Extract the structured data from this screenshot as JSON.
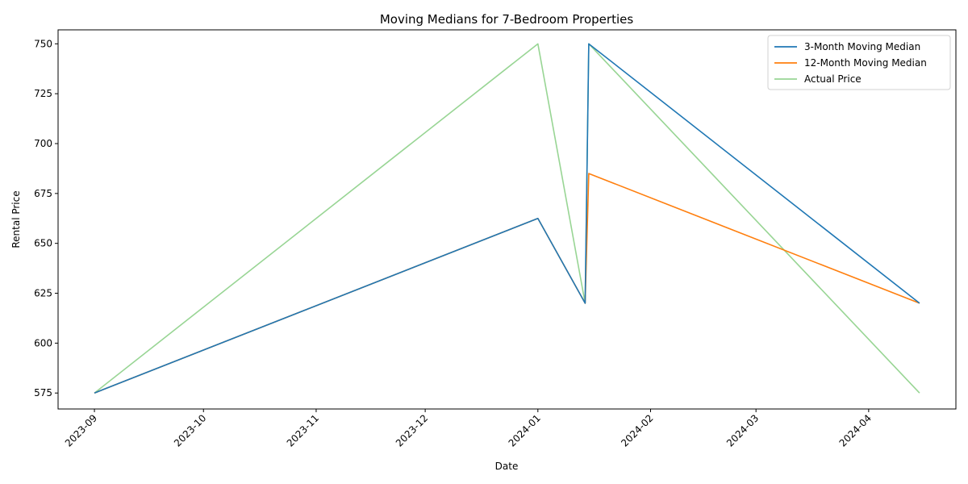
{
  "chart_data": {
    "type": "line",
    "title": "Moving Medians for 7-Bedroom Properties",
    "xlabel": "Date",
    "ylabel": "Rental Price",
    "xlim": [
      "2023-08-22",
      "2024-04-25"
    ],
    "ylim": [
      567,
      757
    ],
    "x_ticks": [
      "2023-09",
      "2023-10",
      "2023-11",
      "2023-12",
      "2024-01",
      "2024-02",
      "2024-03",
      "2024-04"
    ],
    "y_ticks": [
      575,
      600,
      625,
      650,
      675,
      700,
      725,
      750
    ],
    "grid": false,
    "legend_position": "top-right",
    "series": [
      {
        "name": "3-Month Moving Median",
        "color": "#1f77b4",
        "points": [
          {
            "x": "2023-09-01",
            "y": 575
          },
          {
            "x": "2024-01-01",
            "y": 662.5
          },
          {
            "x": "2024-01-14",
            "y": 620
          },
          {
            "x": "2024-01-15",
            "y": 750
          },
          {
            "x": "2024-04-15",
            "y": 620
          }
        ]
      },
      {
        "name": "12-Month Moving Median",
        "color": "#ff7f0e",
        "points": [
          {
            "x": "2023-09-01",
            "y": 575
          },
          {
            "x": "2024-01-01",
            "y": 662.5
          },
          {
            "x": "2024-01-14",
            "y": 620
          },
          {
            "x": "2024-01-15",
            "y": 685
          },
          {
            "x": "2024-04-15",
            "y": 620
          }
        ]
      },
      {
        "name": "Actual Price",
        "color": "#98d594",
        "points": [
          {
            "x": "2023-09-01",
            "y": 575
          },
          {
            "x": "2024-01-01",
            "y": 750
          },
          {
            "x": "2024-01-14",
            "y": 620
          },
          {
            "x": "2024-01-15",
            "y": 750
          },
          {
            "x": "2024-04-15",
            "y": 575
          }
        ]
      }
    ]
  }
}
